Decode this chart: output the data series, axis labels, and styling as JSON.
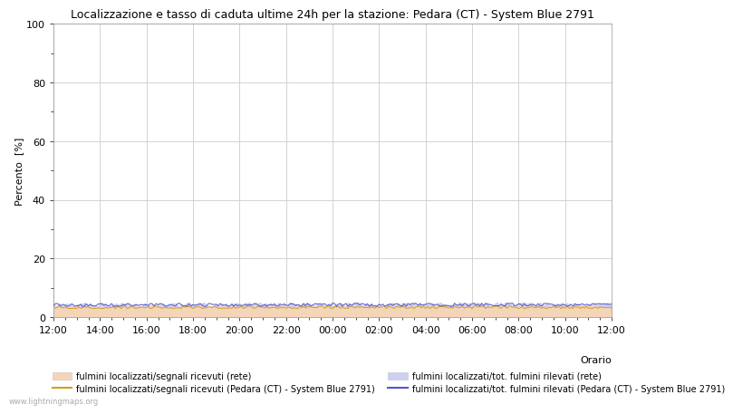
{
  "title": "Localizzazione e tasso di caduta ultime 24h per la stazione: Pedara (CT) - System Blue 2791",
  "ylabel": "Percento  [%]",
  "ylim": [
    0,
    100
  ],
  "yticks": [
    0,
    20,
    40,
    60,
    80,
    100
  ],
  "yticks_minor": [
    10,
    30,
    50,
    70,
    90
  ],
  "x_labels": [
    "12:00",
    "14:00",
    "16:00",
    "18:00",
    "20:00",
    "22:00",
    "00:00",
    "02:00",
    "04:00",
    "06:00",
    "08:00",
    "10:00",
    "12:00"
  ],
  "n_points": 289,
  "grid_color": "#cccccc",
  "fill_color_rete_segnali": "#f5d5b8",
  "fill_color_rete_fulmini": "#cdd0f0",
  "line_color_pedara_segnali": "#d4a020",
  "line_color_pedara_fulmini": "#5555cc",
  "watermark": "www.lightningmaps.org",
  "legend_row1_patch": "fulmini localizzati/segnali ricevuti (rete)",
  "legend_row1_line": "fulmini localizzati/segnali ricevuti (Pedara (CT) - System Blue 2791)",
  "legend_row2_patch": "fulmini localizzati/tot. fulmini rilevati (rete)",
  "legend_row2_line": "fulmini localizzati/tot. fulmini rilevati (Pedara (CT) - System Blue 2791)",
  "orario_label": "Orario",
  "rete_segnali_mean": 3.2,
  "rete_fulmini_mean": 4.0,
  "pedara_segnali_mean": 3.2,
  "pedara_fulmini_mean": 4.0
}
